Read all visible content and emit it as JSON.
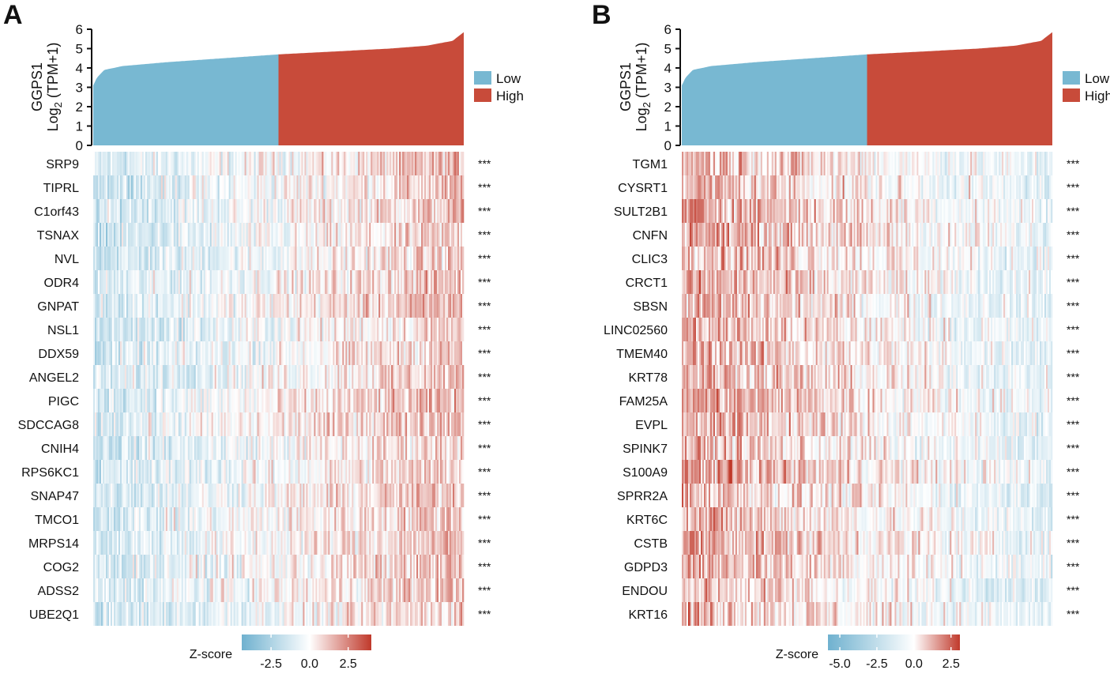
{
  "chart_data": [
    {
      "panel_label": "A",
      "type": "heatmap",
      "top_bar": {
        "type": "area",
        "ylabel_line1": "GGPS1",
        "ylabel_line2_main": "Log",
        "ylabel_line2_sub": "2",
        "ylabel_line2_rest": " (TPM+1)",
        "ylim": [
          0,
          6
        ],
        "yticks": [
          "0",
          "1",
          "2",
          "3",
          "4",
          "5",
          "6"
        ],
        "sorted_expression_curve": [
          [
            0,
            3.1
          ],
          [
            0.01,
            3.5
          ],
          [
            0.03,
            3.9
          ],
          [
            0.08,
            4.1
          ],
          [
            0.2,
            4.3
          ],
          [
            0.5,
            4.7
          ],
          [
            0.8,
            5.0
          ],
          [
            0.9,
            5.15
          ],
          [
            0.97,
            5.4
          ],
          [
            1,
            5.85
          ]
        ],
        "split_fraction": 0.5
      },
      "legend": [
        {
          "label": "Low",
          "color": "#78b8d2"
        },
        {
          "label": "High",
          "color": "#c84b3a"
        }
      ],
      "genes": [
        "SRP9",
        "TIPRL",
        "C1orf43",
        "TSNAX",
        "NVL",
        "ODR4",
        "GNPAT",
        "NSL1",
        "DDX59",
        "ANGEL2",
        "PIGC",
        "SDCCAG8",
        "CNIH4",
        "RPS6KC1",
        "SNAP47",
        "TMCO1",
        "MRPS14",
        "COG2",
        "ADSS2",
        "UBE2Q1"
      ],
      "significance": "***",
      "trend": "positive",
      "colorbar": {
        "title": "Z-score",
        "range": [
          -4.4,
          4.0
        ],
        "ticks": [
          -2.5,
          0.0,
          2.5
        ],
        "tick_labels": [
          "-2.5",
          "0.0",
          "2.5"
        ],
        "low_color": "#6fb1cf",
        "mid_color": "#ffffff",
        "high_color": "#c0392b"
      }
    },
    {
      "panel_label": "B",
      "type": "heatmap",
      "top_bar": {
        "type": "area",
        "ylabel_line1": "GGPS1",
        "ylabel_line2_main": "Log",
        "ylabel_line2_sub": "2",
        "ylabel_line2_rest": " (TPM+1)",
        "ylim": [
          0,
          6
        ],
        "yticks": [
          "0",
          "1",
          "2",
          "3",
          "4",
          "5",
          "6"
        ],
        "sorted_expression_curve": [
          [
            0,
            3.1
          ],
          [
            0.01,
            3.5
          ],
          [
            0.03,
            3.9
          ],
          [
            0.08,
            4.1
          ],
          [
            0.2,
            4.3
          ],
          [
            0.5,
            4.7
          ],
          [
            0.8,
            5.0
          ],
          [
            0.9,
            5.15
          ],
          [
            0.97,
            5.4
          ],
          [
            1,
            5.85
          ]
        ],
        "split_fraction": 0.5
      },
      "legend": [
        {
          "label": "Low",
          "color": "#78b8d2"
        },
        {
          "label": "High",
          "color": "#c84b3a"
        }
      ],
      "genes": [
        "TGM1",
        "CYSRT1",
        "SULT2B1",
        "CNFN",
        "CLIC3",
        "CRCT1",
        "SBSN",
        "LINC02560",
        "TMEM40",
        "KRT78",
        "FAM25A",
        "EVPL",
        "SPINK7",
        "S100A9",
        "SPRR2A",
        "KRT6C",
        "CSTB",
        "GDPD3",
        "ENDOU",
        "KRT16"
      ],
      "significance": "***",
      "trend": "negative",
      "colorbar": {
        "title": "Z-score",
        "range": [
          -5.8,
          3.1
        ],
        "ticks": [
          -5.0,
          -2.5,
          0.0,
          2.5
        ],
        "tick_labels": [
          "-5.0",
          "-2.5",
          "0.0",
          "2.5"
        ],
        "low_color": "#6fb1cf",
        "mid_color": "#ffffff",
        "high_color": "#c0392b"
      }
    }
  ]
}
